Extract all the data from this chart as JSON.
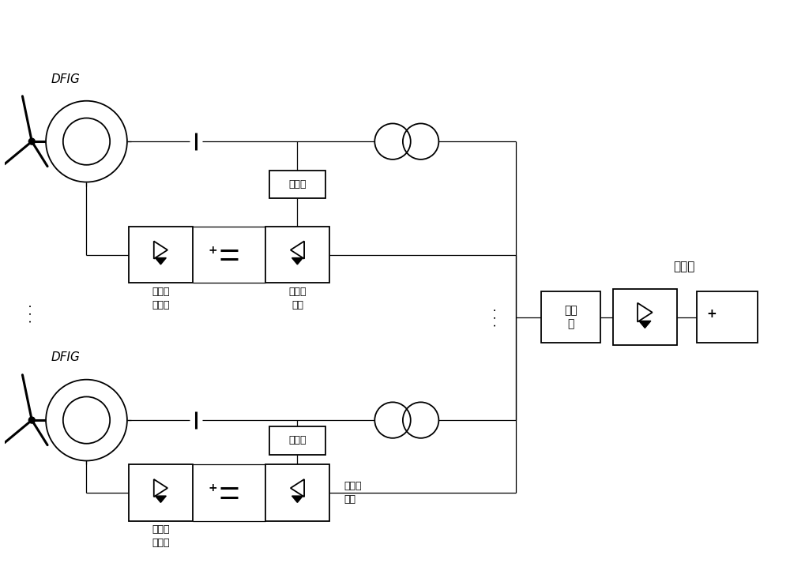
{
  "bg_color": "#ffffff",
  "line_color": "#000000",
  "box_color": "#ffffff",
  "box_edge": "#000000",
  "dfig_label": "DFIG",
  "label_rotor1": "转子侧\n变流器",
  "label_grid1": "网侧变\n流器",
  "label_filter_top": "滤波器",
  "label_filter_bot": "滤波器",
  "label_rotor2": "转子侧\n变流器",
  "label_grid2": "网侧变\n流器",
  "label_lv_filter": "滤波\n器",
  "label_send_station": "送端站",
  "dots": "· · ·"
}
